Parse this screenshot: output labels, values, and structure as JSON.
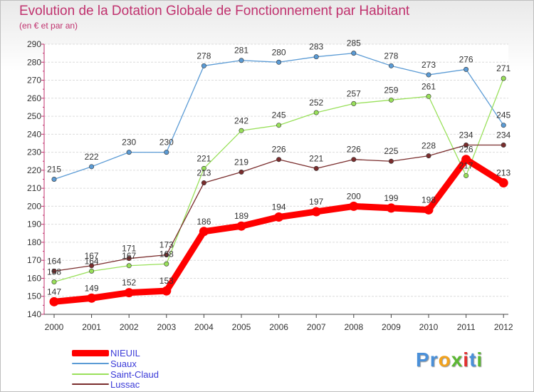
{
  "chart_data": {
    "type": "line",
    "title": "Evolution de la Dotation Globale de Fonctionnement par Habitant",
    "subtitle": "(en € et par an)",
    "xlabel": "",
    "ylabel": "",
    "ylim": [
      140,
      290
    ],
    "yticks": [
      140,
      150,
      160,
      170,
      180,
      190,
      200,
      210,
      220,
      230,
      240,
      250,
      260,
      270,
      280,
      290
    ],
    "categories": [
      "2000",
      "2001",
      "2002",
      "2003",
      "2004",
      "2005",
      "2006",
      "2007",
      "2008",
      "2009",
      "2010",
      "2011",
      "2012"
    ],
    "legend_position": "bottom-left",
    "series": [
      {
        "name": "NIEUIL",
        "color": "#ff0000",
        "values": [
          147,
          149,
          152,
          153,
          186,
          189,
          194,
          197,
          200,
          199,
          198,
          226,
          213
        ]
      },
      {
        "name": "Suaux",
        "color": "#5b9bd5",
        "values": [
          215,
          222,
          230,
          230,
          278,
          281,
          280,
          283,
          285,
          278,
          273,
          276,
          245
        ]
      },
      {
        "name": "Saint-Claud",
        "color": "#99e05a",
        "values": [
          158,
          164,
          167,
          168,
          221,
          242,
          245,
          252,
          257,
          259,
          261,
          217,
          271
        ]
      },
      {
        "name": "Lussac",
        "color": "#7a2d2d",
        "values": [
          164,
          167,
          171,
          173,
          213,
          219,
          226,
          221,
          226,
          225,
          228,
          234,
          234
        ]
      }
    ]
  },
  "branding": {
    "logo_letters": [
      {
        "char": "P",
        "color": "#4a90d9"
      },
      {
        "char": "r",
        "color": "#4a90d9"
      },
      {
        "char": "o",
        "color": "#f2a21c"
      },
      {
        "char": "x",
        "color": "#5bb832"
      },
      {
        "char": "i",
        "color": "#e23030"
      },
      {
        "char": "t",
        "color": "#4a90d9"
      },
      {
        "char": "i",
        "color": "#5bb832"
      }
    ]
  }
}
